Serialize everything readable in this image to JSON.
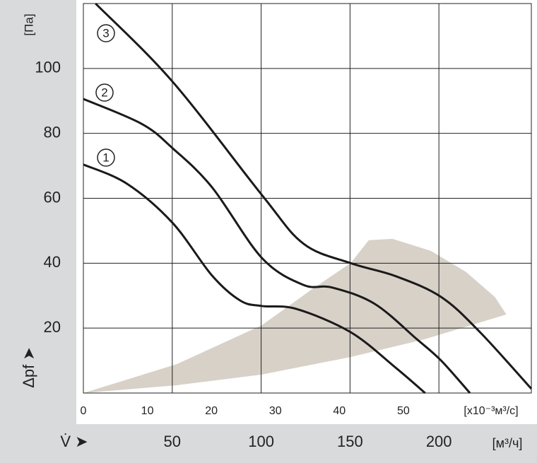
{
  "chart_data": {
    "type": "line",
    "y_label": "[Па]",
    "y_symbol": "Δpf ➤",
    "x_label": "[x10⁻³м³/с]",
    "x2_label": "[м³/ч]",
    "x2_symbol": "V̇ ➤",
    "xlim": [
      0,
      70
    ],
    "xticks": [
      0,
      10,
      20,
      30,
      40,
      50
    ],
    "x2lim": [
      0,
      252
    ],
    "x2ticks": [
      50,
      100,
      150,
      200
    ],
    "ylim": [
      0,
      120
    ],
    "yticks": [
      20,
      40,
      60,
      80,
      100
    ],
    "grid": true,
    "region": {
      "color": "#d8d1c8",
      "x": [
        0,
        14.6,
        27.9,
        41.8,
        53.2,
        66.1,
        64.3,
        59.8,
        54.3,
        48.3,
        44.6,
        41.8,
        35.6,
        27.9,
        14.6
      ],
      "y": [
        0,
        2.4,
        5.7,
        11.1,
        16.5,
        24.2,
        29.6,
        37.3,
        43.8,
        47.5,
        47.1,
        40.1,
        31.8,
        20.9,
        8.9
      ]
    },
    "series": [
      {
        "name": "1",
        "color": "#1a1a1a",
        "x": [
          0,
          6.8,
          13.9,
          20.1,
          24.5,
          27.9,
          33.3,
          41.8,
          48.8,
          53.4
        ],
        "values": [
          70.4,
          64.5,
          52.5,
          36.2,
          28.5,
          26.8,
          25.9,
          18.7,
          7.8,
          0
        ]
      },
      {
        "name": "2",
        "color": "#1a1a1a",
        "x": [
          0,
          9.05,
          13.9,
          20.1,
          27.9,
          34.4,
          38.9,
          45.5,
          52.1,
          55.9,
          60.4
        ],
        "values": [
          90.6,
          83,
          75.5,
          63.4,
          41.6,
          33.3,
          32.5,
          27.5,
          16.6,
          10,
          0
        ]
      },
      {
        "name": "3",
        "color": "#1a1a1a",
        "x": [
          1.9,
          13.9,
          27.9,
          34.4,
          41.8,
          48.8,
          55.9,
          62,
          70
        ],
        "values": [
          120,
          96,
          61,
          46,
          40,
          36,
          29.6,
          18.7,
          1.3
        ]
      }
    ]
  }
}
